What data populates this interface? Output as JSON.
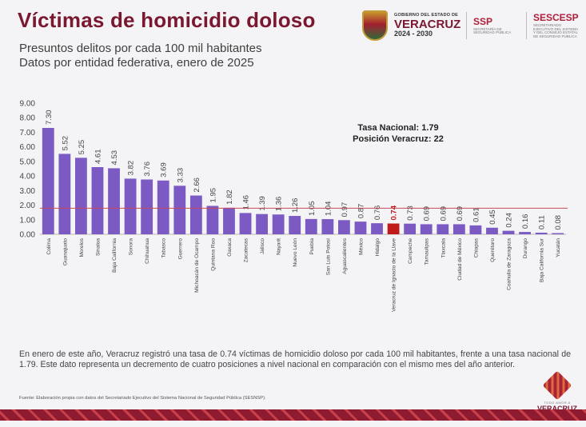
{
  "header": {
    "title": "Víctimas de homicidio doloso",
    "subtitle_line1": "Presuntos delitos por cada 100 mil habitantes",
    "subtitle_line2": "Datos por entidad federativa, enero de 2025"
  },
  "logos": {
    "gov_line1": "GOBIERNO DEL ESTADO DE",
    "gov_line2": "VERACRUZ",
    "gov_line3": "2024 - 2030",
    "ssp_name": "SSP",
    "ssp_desc": "SECRETARÍA DE SEGURIDAD PÚBLICA",
    "sescesp_name": "SESCESP",
    "sescesp_desc": "SECRETARIADO EJECUTIVO DEL SISTEMA Y DEL CONSEJO ESTATAL DE SEGURIDAD PÚBLICA"
  },
  "chart_data": {
    "type": "bar",
    "title": "Víctimas de homicidio doloso",
    "ylim": [
      0,
      9
    ],
    "yticks": [
      "0.00",
      "1.00",
      "2.00",
      "3.00",
      "4.00",
      "5.00",
      "6.00",
      "7.00",
      "8.00",
      "9.00"
    ],
    "categories": [
      "Colima",
      "Guanajuato",
      "Morelos",
      "Sinaloa",
      "Baja California",
      "Sonora",
      "Chihuahua",
      "Tabasco",
      "Guerrero",
      "Michoacán de Ocampo",
      "Quintana Roo",
      "Oaxaca",
      "Zacatecas",
      "Jalisco",
      "Nayarit",
      "Nuevo León",
      "Puebla",
      "San Luis Potosí",
      "Aguascalientes",
      "México",
      "Hidalgo",
      "Veracruz de Ignacio de la Llave",
      "Campeche",
      "Tamaulipas",
      "Tlaxcala",
      "Ciudad de México",
      "Chiapas",
      "Querétaro",
      "Coahuila de Zaragoza",
      "Durango",
      "Baja California Sur",
      "Yucatán"
    ],
    "values": [
      7.3,
      5.52,
      5.25,
      4.61,
      4.53,
      3.82,
      3.76,
      3.69,
      3.33,
      2.66,
      1.95,
      1.82,
      1.46,
      1.39,
      1.36,
      1.26,
      1.05,
      1.04,
      0.97,
      0.87,
      0.76,
      0.74,
      0.73,
      0.69,
      0.69,
      0.69,
      0.61,
      0.45,
      0.24,
      0.16,
      0.11,
      0.08
    ],
    "value_labels": [
      "7.30",
      "5.52",
      "5.25",
      "4.61",
      "4.53",
      "3.82",
      "3.76",
      "3.69",
      "3.33",
      "2.66",
      "1.95",
      "1.82",
      "1.46",
      "1.39",
      "1.36",
      "1.26",
      "1.05",
      "1.04",
      "0.97",
      "0.87",
      "0.76",
      "0.74",
      "0.73",
      "0.69",
      "0.69",
      "0.69",
      "0.61",
      "0.45",
      "0.24",
      "0.16",
      "0.11",
      "0.08"
    ],
    "highlight": "Veracruz de Ignacio de la Llave",
    "national_rate": 1.79,
    "bar_color": "#7b5ac4",
    "highlight_color": "#c11a1a",
    "reference_line_color": "#c84a5a",
    "annotation_line1": "Tasa Nacional: 1.79",
    "annotation_line2": "Posición Veracruz: 22"
  },
  "footer": {
    "note": "En enero de este año, Veracruz registró una tasa de 0.74 víctimas de homicidio doloso por cada 100 mil habitantes, frente a una tasa nacional de 1.79. Este dato representa un decremento de cuatro posiciones a nivel nacional en comparación con el mismo mes del año anterior.",
    "source": "Fuente: Elaboración propia con datos del Secretariado Ejecutivo del Sistema Nacional de Seguridad Pública (SESNSP).",
    "brand_small": "TODO AMOR A",
    "brand_big": "VERACRUZ"
  }
}
